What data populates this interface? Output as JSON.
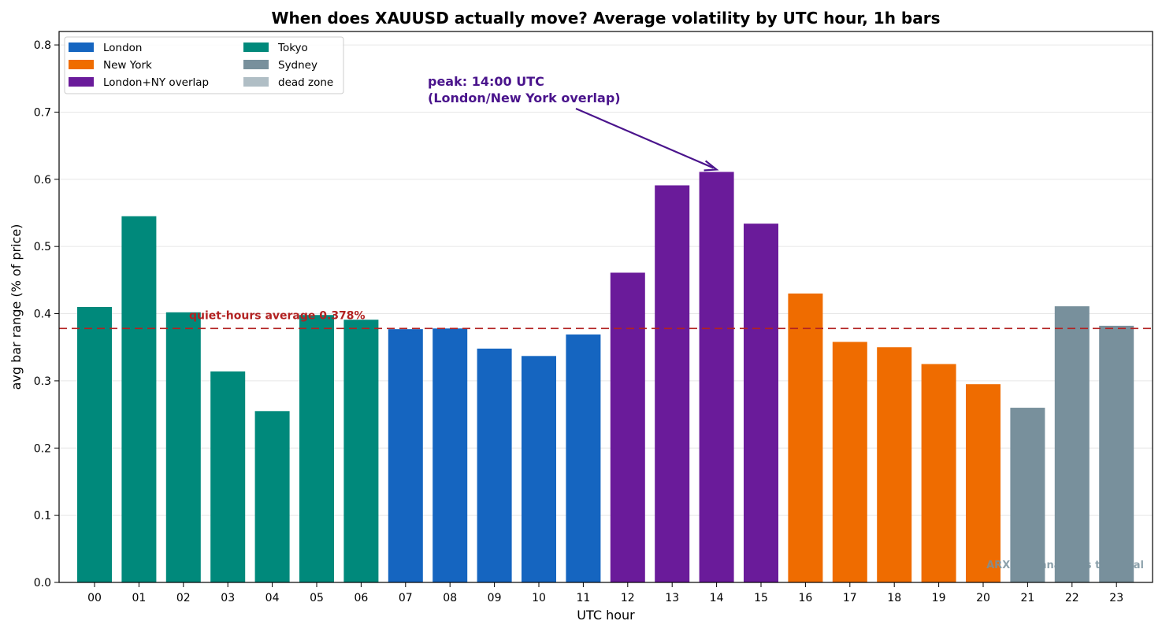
{
  "chart_data": {
    "type": "bar",
    "title": "When does XAUUSD actually move? Average volatility by UTC hour, 1h bars",
    "xlabel": "UTC hour",
    "ylabel": "avg bar range (% of price)",
    "ylim": [
      0,
      0.82
    ],
    "yticks": [
      "0.0",
      "0.1",
      "0.2",
      "0.3",
      "0.4",
      "0.5",
      "0.6",
      "0.7",
      "0.8"
    ],
    "grid": "horizontal",
    "legend_position": "top-left",
    "categories": [
      "00",
      "01",
      "02",
      "03",
      "04",
      "05",
      "06",
      "07",
      "08",
      "09",
      "10",
      "11",
      "12",
      "13",
      "14",
      "15",
      "16",
      "17",
      "18",
      "19",
      "20",
      "21",
      "22",
      "23"
    ],
    "values": [
      0.41,
      0.545,
      0.402,
      0.314,
      0.255,
      0.398,
      0.391,
      0.377,
      0.378,
      0.348,
      0.337,
      0.369,
      0.461,
      0.591,
      0.611,
      0.534,
      0.43,
      0.358,
      0.35,
      0.325,
      0.295,
      0.26,
      0.411,
      0.382
    ],
    "sessions": [
      "Tokyo",
      "Tokyo",
      "Tokyo",
      "Tokyo",
      "Tokyo",
      "Tokyo",
      "Tokyo",
      "London",
      "London",
      "London",
      "London",
      "London",
      "London+NY overlap",
      "London+NY overlap",
      "London+NY overlap",
      "London+NY overlap",
      "New York",
      "New York",
      "New York",
      "New York",
      "New York",
      "Sydney",
      "Sydney",
      "Sydney"
    ],
    "legend": [
      {
        "name": "London",
        "color": "#1565c0"
      },
      {
        "name": "New York",
        "color": "#ef6c00"
      },
      {
        "name": "London+NY overlap",
        "color": "#6a1b9a"
      },
      {
        "name": "Tokyo",
        "color": "#00897b"
      },
      {
        "name": "Sydney",
        "color": "#78909c"
      },
      {
        "name": "dead zone",
        "color": "#b0bec5"
      }
    ],
    "reference_line": {
      "value": 0.378,
      "label": "quiet-hours average 0.378%",
      "color": "#b22222"
    },
    "annotation": {
      "line1": "peak: 14:00 UTC",
      "line2": "(London/New York overlap)",
      "target_category": "14",
      "color": "#4a148c"
    },
    "watermark": "ARXUM · analytics terminal"
  }
}
